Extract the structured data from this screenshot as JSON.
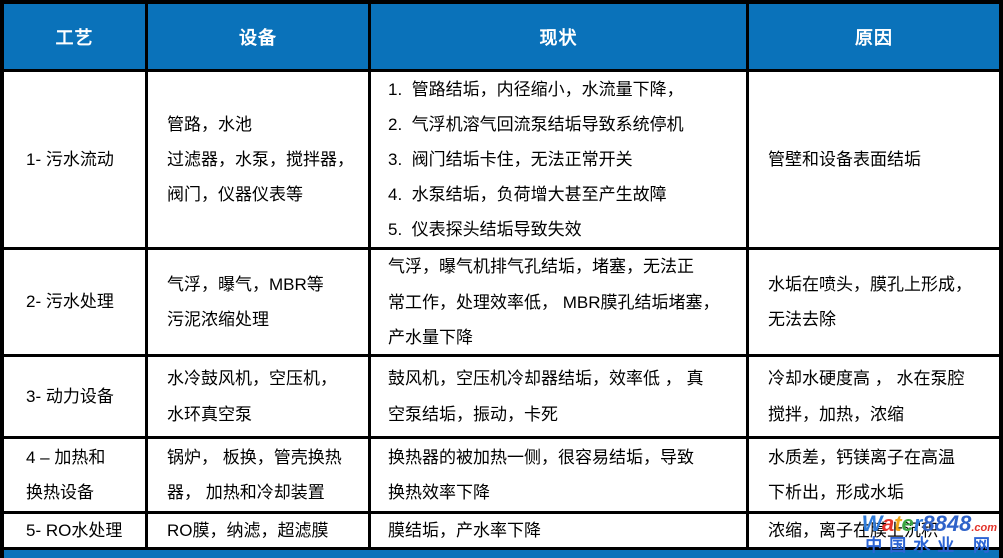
{
  "colors": {
    "header_bg": "#0a72ba",
    "header_text": "#ffffff",
    "border": "#000000",
    "body_text": "#000000",
    "footer_bar": "#0a72ba"
  },
  "table": {
    "headers": [
      "工艺",
      "设备",
      "现状",
      "原因"
    ],
    "rows": [
      {
        "process": "1- 污水流动",
        "equipment": "管路，水池\n过滤器，水泵，搅拌器，\n阀门，仪器仪表等",
        "status": "1.  管路结垢，内径缩小，水流量下降，\n2.  气浮机溶气回流泵结垢导致系统停机\n3.  阀门结垢卡住，无法正常开关\n4.  水泵结垢，负荷增大甚至产生故障\n5.  仪表探头结垢导致失效",
        "reason": "管壁和设备表面结垢"
      },
      {
        "process": "2- 污水处理",
        "equipment": "气浮，曝气，MBR等\n污泥浓缩处理",
        "status": "气浮，曝气机排气孔结垢，堵塞，无法正\n常工作，处理效率低， MBR膜孔结垢堵塞，\n产水量下降",
        "reason": "水垢在喷头，膜孔上形成，\n无法去除"
      },
      {
        "process": "3- 动力设备",
        "equipment": "水冷鼓风机，空压机，\n水环真空泵",
        "status": "鼓风机，空压机冷却器结垢，效率低 ， 真\n空泵结垢，振动，卡死",
        "reason": "冷却水硬度高 ， 水在泵腔\n搅拌，加热，浓缩"
      },
      {
        "process": "4 – 加热和\n换热设备",
        "equipment": "锅炉， 板换，管壳换热\n器， 加热和冷却装置",
        "status": "换热器的被加热一侧，很容易结垢，导致\n换热效率下降",
        "reason": "水质差，钙镁离子在高温\n下析出，形成水垢"
      },
      {
        "process": "5- RO水处理",
        "equipment": "RO膜，纳滤，超滤膜",
        "status": "膜结垢，产水率下降",
        "reason": "浓缩，离子在膜上沉积"
      }
    ]
  },
  "watermark": {
    "line1": [
      {
        "text": "W",
        "color": "#2f7bd9"
      },
      {
        "text": "a",
        "color": "#e3342b"
      },
      {
        "text": "t",
        "color": "#f2a71b"
      },
      {
        "text": "e",
        "color": "#3aa443"
      },
      {
        "text": "r",
        "color": "#2f7bd9"
      },
      {
        "text": "8848",
        "color": "#2f63c9"
      },
      {
        "text": ".com",
        "color": "#e3342b",
        "size": "11px"
      }
    ],
    "line2": {
      "text": "中国水业 网",
      "color": "#2c64d4"
    }
  }
}
